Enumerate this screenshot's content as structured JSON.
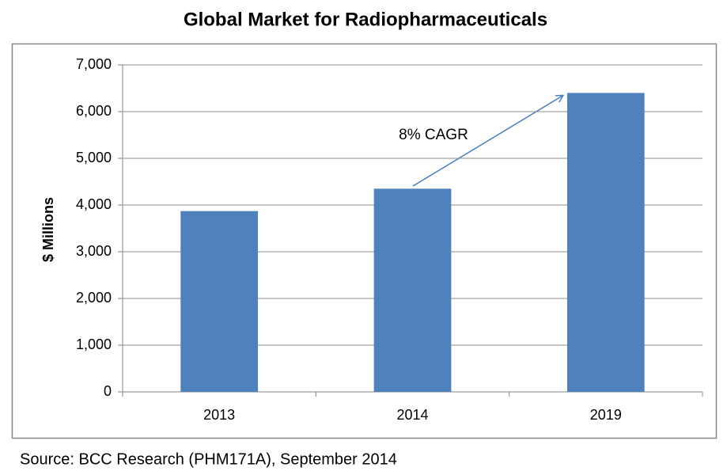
{
  "chart_data": {
    "type": "bar",
    "title": "Global Market for Radiopharmaceuticals",
    "y_label": "$ Millions",
    "annotation": "8% CAGR",
    "source": "Source: BCC Research (PHM171A), September 2014",
    "categories": [
      "2013",
      "2014",
      "2019"
    ],
    "values": [
      3870,
      4350,
      6400
    ],
    "color": "#4f81bd",
    "ylim": [
      0,
      7000
    ],
    "yticks": [
      0,
      {
        "value": 1000,
        "label": "1,000"
      },
      {
        "value": 2000,
        "label": "2,000"
      },
      {
        "value": 3000,
        "label": "3,000"
      },
      {
        "value": 4000,
        "label": "4,000"
      },
      {
        "value": 5000,
        "label": "5,000"
      },
      {
        "value": 6000,
        "label": "6,000"
      },
      {
        "value": 7000,
        "label": "7,000"
      }
    ],
    "grid": true
  }
}
